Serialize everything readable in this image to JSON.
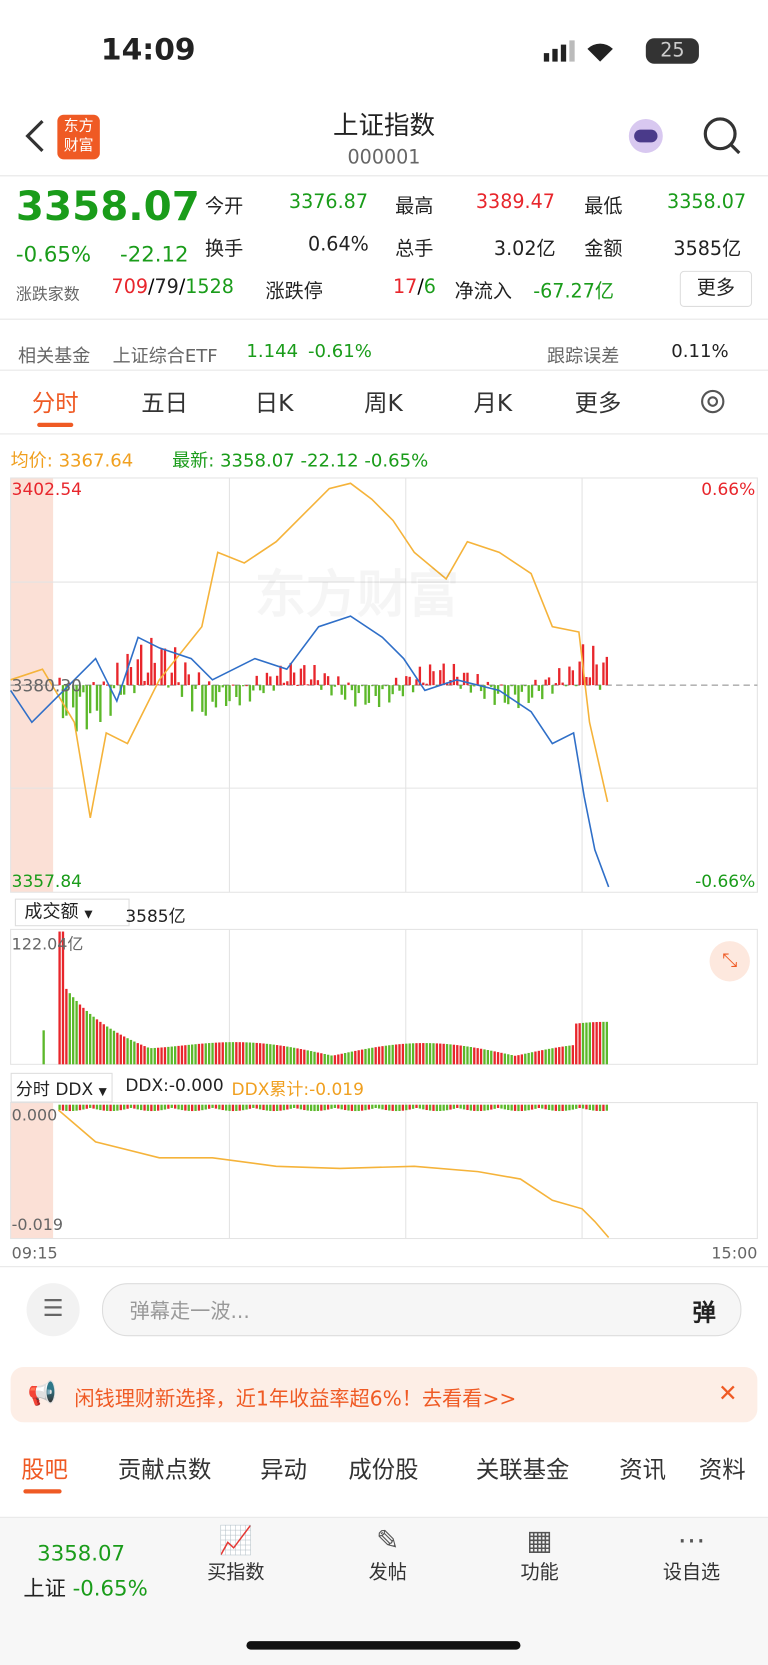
{
  "status": {
    "time": "14:09",
    "battery": "25"
  },
  "header": {
    "logo": [
      "东方",
      "财富"
    ],
    "title": "上证指数",
    "code": "000001"
  },
  "quote": {
    "price": "3358.07",
    "change_pct": "-0.65%",
    "change": "-22.12",
    "fields": [
      [
        "今开",
        "3376.87"
      ],
      [
        "最高",
        "3389.47"
      ],
      [
        "最低",
        "3358.07"
      ],
      [
        "换手",
        "0.64%"
      ],
      [
        "总手",
        "3.02亿"
      ],
      [
        "金额",
        "3585亿"
      ]
    ],
    "breadth_label": "涨跌家数",
    "up": "709",
    "flat": "79",
    "down": "1528",
    "limit_label": "涨跌停",
    "limit_up": "17",
    "limit_down": "6",
    "netflow_label": "净流入",
    "netflow": "-67.27亿",
    "more": "更多"
  },
  "fund": {
    "label": "相关基金",
    "name": "上证综合ETF",
    "price": "1.144",
    "pct": "-0.61%",
    "error_label": "跟踪误差",
    "error": "0.11%"
  },
  "tabs": [
    "分时",
    "五日",
    "日K",
    "周K",
    "月K",
    "更多"
  ],
  "chart": {
    "avg_label": "均价:",
    "avg": "3367.64",
    "latest_label": "最新:",
    "latest": "3358.07",
    "latest_change": "-22.12",
    "latest_pct": "-0.65%",
    "y_top": "3402.54",
    "y_mid": "3380.30",
    "y_bottom": "3357.84",
    "pct_top": "0.66%",
    "pct_bottom": "-0.66%",
    "watermark": "东方财富",
    "volume_selector": "成交额",
    "volume_total": "3585亿",
    "volume_max": "122.04亿",
    "ddx_selector": "分时 DDX",
    "ddx": "DDX:-0.000",
    "ddx_cum": "DDX累计:-0.019",
    "ddx_top": "0.000",
    "ddx_bottom": "-0.019",
    "time_start": "09:15",
    "time_end": "15:00"
  },
  "comment": {
    "placeholder": "弹幕走一波...",
    "button": "弹"
  },
  "ad": {
    "text": "闲钱理财新选择，近1年收益率超6%！去看看>>"
  },
  "bottom_tabs": [
    "股吧",
    "贡献点数",
    "异动",
    "成份股",
    "关联基金",
    "资讯",
    "资料"
  ],
  "nav": {
    "price": "3358.07",
    "label": "上证",
    "pct": "-0.65%",
    "items": [
      "买指数",
      "发帖",
      "功能",
      "设自选"
    ]
  }
}
